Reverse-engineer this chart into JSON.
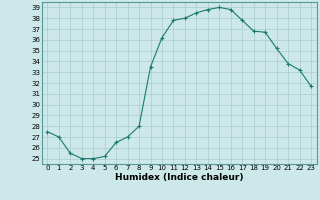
{
  "x": [
    0,
    1,
    2,
    3,
    4,
    5,
    6,
    7,
    8,
    9,
    10,
    11,
    12,
    13,
    14,
    15,
    16,
    17,
    18,
    19,
    20,
    21,
    22,
    23
  ],
  "y": [
    27.5,
    27.0,
    25.5,
    25.0,
    25.0,
    25.2,
    26.5,
    27.0,
    28.0,
    33.5,
    36.2,
    37.8,
    38.0,
    38.5,
    38.8,
    39.0,
    38.8,
    37.8,
    36.8,
    36.7,
    35.2,
    33.8,
    33.2,
    31.7
  ],
  "line_color": "#1a7a6e",
  "marker": "+",
  "bg_color": "#cce8e8",
  "grid_color": "#aacccc",
  "xlabel": "Humidex (Indice chaleur)",
  "xlim": [
    -0.5,
    23.5
  ],
  "ylim": [
    24.5,
    39.5
  ],
  "yticks": [
    25,
    26,
    27,
    28,
    29,
    30,
    31,
    32,
    33,
    34,
    35,
    36,
    37,
    38,
    39
  ],
  "xticks": [
    0,
    1,
    2,
    3,
    4,
    5,
    6,
    7,
    8,
    9,
    10,
    11,
    12,
    13,
    14,
    15,
    16,
    17,
    18,
    19,
    20,
    21,
    22,
    23
  ],
  "tick_fontsize": 5,
  "xlabel_fontsize": 6.5
}
